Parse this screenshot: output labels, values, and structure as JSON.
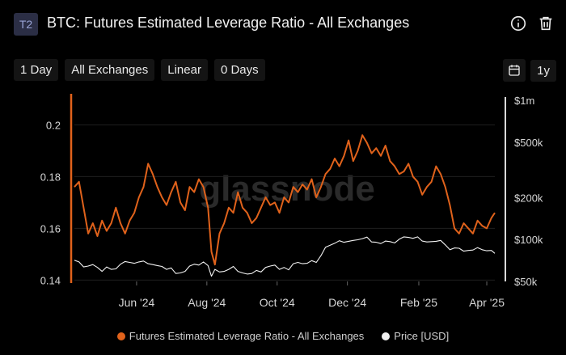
{
  "header": {
    "badge": "T2",
    "title": "BTC: Futures Estimated Leverage Ratio - All Exchanges",
    "icons": [
      "info-icon",
      "trash-icon"
    ]
  },
  "toolbar": {
    "resolution": "1 Day",
    "exchange": "All Exchanges",
    "scale": "Linear",
    "smoothing": "0 Days",
    "range": "1y"
  },
  "colors": {
    "ratio": "#e0621b",
    "price": "#f2f2f2",
    "grid": "#1f1f1f",
    "axis_text": "#d6d6d6"
  },
  "chart_data": {
    "type": "line",
    "title": "BTC: Futures Estimated Leverage Ratio - All Exchanges",
    "x_ticks": [
      "Jun '24",
      "Aug '24",
      "Oct '24",
      "Dec '24",
      "Feb '25",
      "Apr '25"
    ],
    "x_tick_dates": [
      "2024-06-01",
      "2024-08-01",
      "2024-10-01",
      "2024-12-01",
      "2025-02-01",
      "2025-04-01"
    ],
    "x_range": [
      "2024-04-08",
      "2025-04-08"
    ],
    "y_left": {
      "ticks": [
        0.14,
        0.16,
        0.18,
        0.2
      ],
      "range": [
        0.1395,
        0.2095
      ]
    },
    "y_right": {
      "scale": "log",
      "ticks": [
        50000,
        100000,
        200000,
        500000,
        1000000
      ],
      "tick_labels": [
        "$50k",
        "$100k",
        "$200k",
        "$500k",
        "$1m"
      ],
      "range": [
        50000,
        1000000
      ]
    },
    "grid": true,
    "legend_position": "bottom",
    "watermark": "glassnode",
    "series": [
      {
        "name": "Futures Estimated Leverage Ratio - All Exchanges",
        "axis": "left",
        "dates": [
          "2024-04-08",
          "2024-04-12",
          "2024-04-16",
          "2024-04-20",
          "2024-04-24",
          "2024-04-28",
          "2024-05-02",
          "2024-05-06",
          "2024-05-10",
          "2024-05-14",
          "2024-05-18",
          "2024-05-22",
          "2024-05-26",
          "2024-05-30",
          "2024-06-03",
          "2024-06-07",
          "2024-06-11",
          "2024-06-15",
          "2024-06-19",
          "2024-06-23",
          "2024-06-27",
          "2024-07-01",
          "2024-07-05",
          "2024-07-09",
          "2024-07-13",
          "2024-07-17",
          "2024-07-21",
          "2024-07-25",
          "2024-07-29",
          "2024-08-02",
          "2024-08-05",
          "2024-08-08",
          "2024-08-12",
          "2024-08-16",
          "2024-08-20",
          "2024-08-24",
          "2024-08-28",
          "2024-09-01",
          "2024-09-05",
          "2024-09-09",
          "2024-09-13",
          "2024-09-17",
          "2024-09-21",
          "2024-09-25",
          "2024-09-29",
          "2024-10-03",
          "2024-10-07",
          "2024-10-11",
          "2024-10-15",
          "2024-10-19",
          "2024-10-23",
          "2024-10-27",
          "2024-10-31",
          "2024-11-04",
          "2024-11-08",
          "2024-11-12",
          "2024-11-16",
          "2024-11-20",
          "2024-11-24",
          "2024-11-28",
          "2024-12-02",
          "2024-12-06",
          "2024-12-10",
          "2024-12-14",
          "2024-12-18",
          "2024-12-22",
          "2024-12-26",
          "2024-12-30",
          "2025-01-03",
          "2025-01-07",
          "2025-01-11",
          "2025-01-15",
          "2025-01-19",
          "2025-01-23",
          "2025-01-27",
          "2025-01-31",
          "2025-02-04",
          "2025-02-08",
          "2025-02-12",
          "2025-02-16",
          "2025-02-20",
          "2025-02-24",
          "2025-02-28",
          "2025-03-04",
          "2025-03-08",
          "2025-03-12",
          "2025-03-16",
          "2025-03-20",
          "2025-03-24",
          "2025-03-28",
          "2025-04-01",
          "2025-04-05",
          "2025-04-08"
        ],
        "values": [
          0.176,
          0.178,
          0.168,
          0.158,
          0.162,
          0.157,
          0.163,
          0.159,
          0.162,
          0.168,
          0.162,
          0.158,
          0.163,
          0.166,
          0.172,
          0.176,
          0.185,
          0.181,
          0.176,
          0.172,
          0.169,
          0.174,
          0.178,
          0.17,
          0.167,
          0.176,
          0.174,
          0.179,
          0.176,
          0.168,
          0.151,
          0.146,
          0.158,
          0.162,
          0.168,
          0.166,
          0.174,
          0.168,
          0.166,
          0.162,
          0.164,
          0.168,
          0.172,
          0.169,
          0.17,
          0.166,
          0.172,
          0.17,
          0.176,
          0.174,
          0.177,
          0.175,
          0.179,
          0.172,
          0.176,
          0.181,
          0.183,
          0.187,
          0.184,
          0.188,
          0.194,
          0.186,
          0.19,
          0.196,
          0.193,
          0.189,
          0.191,
          0.188,
          0.192,
          0.186,
          0.184,
          0.181,
          0.182,
          0.185,
          0.18,
          0.178,
          0.173,
          0.176,
          0.178,
          0.184,
          0.181,
          0.176,
          0.169,
          0.16,
          0.158,
          0.162,
          0.16,
          0.158,
          0.163,
          0.161,
          0.16,
          0.164,
          0.166
        ]
      },
      {
        "name": "Price [USD]",
        "axis": "right",
        "dates": [
          "2024-04-08",
          "2024-04-12",
          "2024-04-16",
          "2024-04-20",
          "2024-04-24",
          "2024-04-28",
          "2024-05-02",
          "2024-05-06",
          "2024-05-10",
          "2024-05-14",
          "2024-05-18",
          "2024-05-22",
          "2024-05-26",
          "2024-05-30",
          "2024-06-03",
          "2024-06-07",
          "2024-06-11",
          "2024-06-15",
          "2024-06-19",
          "2024-06-23",
          "2024-06-27",
          "2024-07-01",
          "2024-07-05",
          "2024-07-09",
          "2024-07-13",
          "2024-07-17",
          "2024-07-21",
          "2024-07-25",
          "2024-07-29",
          "2024-08-02",
          "2024-08-05",
          "2024-08-08",
          "2024-08-12",
          "2024-08-16",
          "2024-08-20",
          "2024-08-24",
          "2024-08-28",
          "2024-09-01",
          "2024-09-05",
          "2024-09-09",
          "2024-09-13",
          "2024-09-17",
          "2024-09-21",
          "2024-09-25",
          "2024-09-29",
          "2024-10-03",
          "2024-10-07",
          "2024-10-11",
          "2024-10-15",
          "2024-10-19",
          "2024-10-23",
          "2024-10-27",
          "2024-10-31",
          "2024-11-04",
          "2024-11-08",
          "2024-11-12",
          "2024-11-16",
          "2024-11-20",
          "2024-11-24",
          "2024-11-28",
          "2024-12-02",
          "2024-12-06",
          "2024-12-10",
          "2024-12-14",
          "2024-12-18",
          "2024-12-22",
          "2024-12-26",
          "2024-12-30",
          "2025-01-03",
          "2025-01-07",
          "2025-01-11",
          "2025-01-15",
          "2025-01-19",
          "2025-01-23",
          "2025-01-27",
          "2025-01-31",
          "2025-02-04",
          "2025-02-08",
          "2025-02-12",
          "2025-02-16",
          "2025-02-20",
          "2025-02-24",
          "2025-02-28",
          "2025-03-04",
          "2025-03-08",
          "2025-03-12",
          "2025-03-16",
          "2025-03-20",
          "2025-03-24",
          "2025-03-28",
          "2025-04-01",
          "2025-04-05",
          "2025-04-08"
        ],
        "values": [
          71000,
          69000,
          63500,
          64500,
          66000,
          63000,
          59000,
          63500,
          61000,
          61500,
          66500,
          69500,
          68500,
          67500,
          69000,
          70000,
          67000,
          66000,
          65000,
          64000,
          61000,
          62500,
          57000,
          57500,
          59000,
          64500,
          66500,
          65500,
          69000,
          65000,
          54500,
          61000,
          58500,
          59000,
          61000,
          64000,
          59000,
          57500,
          56500,
          57000,
          60000,
          58500,
          63000,
          64500,
          65500,
          61000,
          63000,
          60500,
          67000,
          68500,
          67000,
          67500,
          70500,
          68500,
          76500,
          88000,
          91000,
          94000,
          98000,
          95500,
          97000,
          98500,
          99500,
          101500,
          104000,
          96000,
          95500,
          93500,
          97500,
          96500,
          94500,
          100500,
          104500,
          103500,
          102000,
          104500,
          97500,
          96000,
          96500,
          97000,
          98500,
          91500,
          84500,
          87000,
          86500,
          82500,
          83500,
          84000,
          87500,
          84500,
          83000,
          83500,
          79500
        ]
      }
    ]
  }
}
